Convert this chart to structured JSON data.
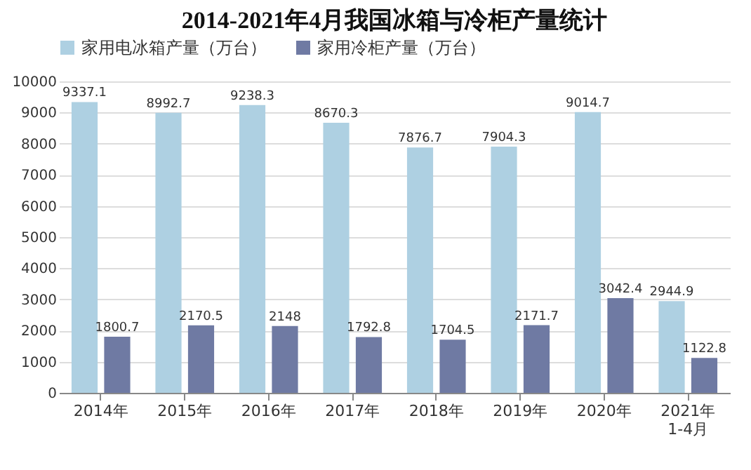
{
  "chart_data": {
    "type": "bar",
    "title": "2014-2021年4月我国冰箱与冷柜产量统计",
    "categories": [
      "2014年",
      "2015年",
      "2016年",
      "2017年",
      "2018年",
      "2019年",
      "2020年",
      "2021年 1-4月"
    ],
    "series": [
      {
        "name": "家用电冰箱产量（万台）",
        "color": "#aed0e2",
        "values": [
          9337.1,
          8992.7,
          9238.3,
          8670.3,
          7876.7,
          7904.3,
          9014.7,
          2944.9
        ]
      },
      {
        "name": "家用冷柜产量（万台）",
        "color": "#6f7aa3",
        "values": [
          1800.7,
          2170.5,
          2148,
          1792.8,
          1704.5,
          2171.7,
          3042.4,
          1122.8
        ]
      }
    ],
    "ylim": [
      0,
      10000
    ],
    "yticks": [
      0,
      1000,
      2000,
      3000,
      4000,
      5000,
      6000,
      7000,
      8000,
      9000,
      10000
    ],
    "grid": "y",
    "legend": "top",
    "data_labels": true
  }
}
